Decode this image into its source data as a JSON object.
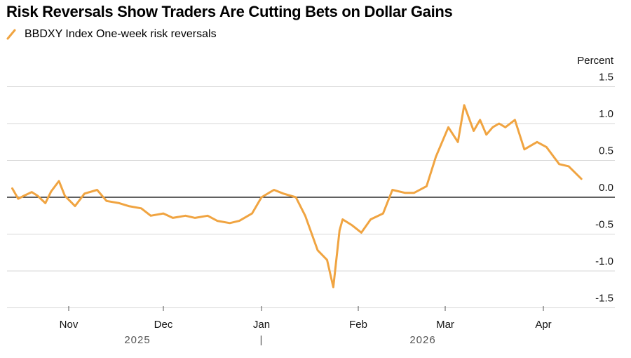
{
  "title": "Risk Reversals Show Traders Are Cutting Bets on Dollar Gains",
  "chart_data": {
    "type": "line",
    "title": "Risk Reversals Show Traders Are Cutting Bets on Dollar Gains",
    "ylabel": "Percent",
    "ylim": [
      -1.5,
      1.5
    ],
    "yticks": [
      "1.5",
      "1.0",
      "0.5",
      "0.0",
      "-0.5",
      "-1.0",
      "-1.5"
    ],
    "xtick_labels": [
      "Nov",
      "Dec",
      "Jan",
      "Feb",
      "Mar",
      "Apr"
    ],
    "year_labels": [
      "2025",
      "|",
      "2026"
    ],
    "grid": true,
    "zero_line": true,
    "legend_position": "top-left",
    "series": [
      {
        "name": "BBDXY Index One-week risk reversals",
        "color": "#f0a441",
        "x": [
          "2025-10-03",
          "2025-10-06",
          "2025-10-09",
          "2025-10-13",
          "2025-10-16",
          "2025-10-20",
          "2025-10-23",
          "2025-10-27",
          "2025-10-30",
          "2025-11-03",
          "2025-11-06",
          "2025-11-10",
          "2025-11-13",
          "2025-11-17",
          "2025-11-20",
          "2025-11-24",
          "2025-11-27",
          "2025-12-01",
          "2025-12-04",
          "2025-12-08",
          "2025-12-11",
          "2025-12-15",
          "2025-12-18",
          "2025-12-22",
          "2025-12-25",
          "2025-12-29",
          "2026-01-01",
          "2026-01-05",
          "2026-01-08",
          "2026-01-12",
          "2026-01-15",
          "2026-01-19",
          "2026-01-22",
          "2026-01-24",
          "2026-01-26",
          "2026-01-27",
          "2026-01-30",
          "2026-02-02",
          "2026-02-05",
          "2026-02-09",
          "2026-02-12",
          "2026-02-16",
          "2026-02-19",
          "2026-02-23",
          "2026-02-26",
          "2026-03-02",
          "2026-03-05",
          "2026-03-07",
          "2026-03-10",
          "2026-03-12",
          "2026-03-14",
          "2026-03-16",
          "2026-03-18",
          "2026-03-20",
          "2026-03-23",
          "2026-03-26",
          "2026-03-30",
          "2026-04-02",
          "2026-04-06",
          "2026-04-09",
          "2026-04-13"
        ],
        "values": [
          0.12,
          -0.02,
          0.02,
          0.07,
          0.02,
          -0.08,
          0.08,
          0.22,
          0.02,
          -0.12,
          0.05,
          0.1,
          -0.05,
          -0.08,
          -0.12,
          -0.15,
          -0.25,
          -0.22,
          -0.28,
          -0.25,
          -0.28,
          -0.25,
          -0.32,
          -0.35,
          -0.32,
          -0.22,
          0.0,
          0.1,
          0.05,
          0.0,
          -0.25,
          -0.72,
          -0.85,
          -1.22,
          -0.45,
          -0.3,
          -0.38,
          -0.48,
          -0.3,
          -0.22,
          0.1,
          0.06,
          0.06,
          0.15,
          0.55,
          0.95,
          0.75,
          1.25,
          0.9,
          1.05,
          0.85,
          0.95,
          1.0,
          0.95,
          1.05,
          0.65,
          0.75,
          0.68,
          0.45,
          0.42,
          0.25
        ]
      }
    ]
  }
}
